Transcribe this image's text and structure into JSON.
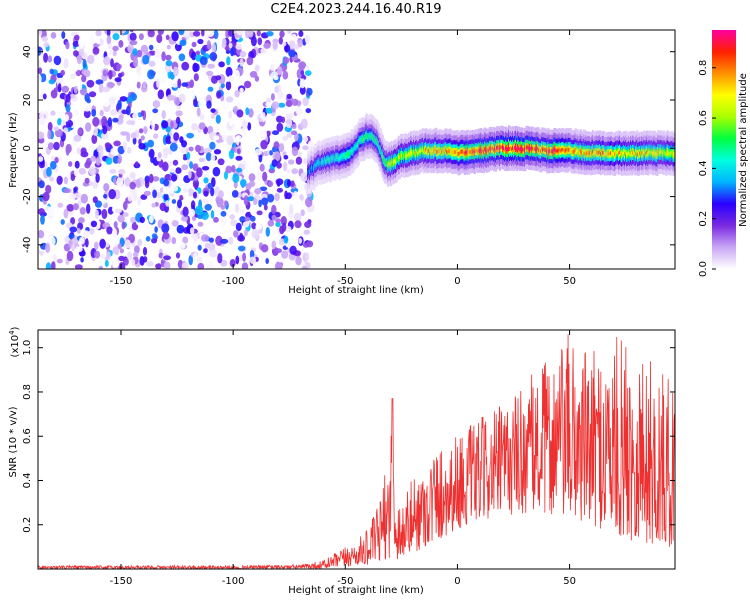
{
  "title": "C2E4.2023.244.16.40.R19",
  "chart_data": [
    {
      "type": "heatmap",
      "xlabel": "Height of straight line (km)",
      "ylabel": "Frequency (Hz)",
      "xlim": [
        -187,
        97
      ],
      "ylim": [
        -50,
        49
      ],
      "xticks": [
        -150,
        -100,
        -50,
        0,
        50
      ],
      "yticks": [
        -40,
        -20,
        0,
        20,
        40
      ],
      "colorbar": {
        "label": "Normalized spectral amplitude",
        "range": [
          0,
          0.95
        ],
        "ticks": [
          "0.0",
          "0.2",
          "0.4",
          "0.6",
          "0.8"
        ],
        "colors": [
          "#ffffff",
          "#c9a6f5",
          "#7a2ae0",
          "#2a00ff",
          "#00b4ff",
          "#00ffe0",
          "#00ff40",
          "#aaff00",
          "#ffff00",
          "#ff9000",
          "#ff2000",
          "#ff00a0"
        ]
      },
      "noise_region_x": [
        -187,
        -67
      ],
      "ridge": {
        "x": [
          -67,
          -62,
          -58,
          -54,
          -50,
          -47,
          -44,
          -41,
          -39,
          -37,
          -35,
          -33,
          -31,
          -28,
          -25,
          -20,
          -15,
          -10,
          -5,
          0,
          10,
          20,
          30,
          40,
          50,
          60,
          70,
          80,
          90,
          97
        ],
        "freq": [
          -10,
          -6,
          -5,
          -4,
          -3,
          -1,
          3,
          5,
          5,
          4,
          0,
          -5,
          -7,
          -5,
          -3,
          -2,
          -1,
          -1,
          -1,
          -2,
          -1,
          0,
          0,
          -1,
          -1,
          -2,
          -2,
          -2,
          -2,
          -2
        ],
        "amplitude": [
          0.35,
          0.4,
          0.45,
          0.45,
          0.5,
          0.5,
          0.5,
          0.55,
          0.55,
          0.5,
          0.5,
          0.55,
          0.6,
          0.65,
          0.65,
          0.7,
          0.75,
          0.75,
          0.8,
          0.85,
          0.9,
          0.95,
          0.95,
          0.9,
          0.85,
          0.8,
          0.75,
          0.75,
          0.7,
          0.7
        ]
      }
    },
    {
      "type": "line",
      "xlabel": "Height of straight line (km)",
      "ylabel": "SNR (10 * v/v)",
      "scale_label": "(x10",
      "scale_exp": "4",
      "scale_close": ")",
      "xlim": [
        -187,
        97
      ],
      "ylim": [
        0,
        1.08
      ],
      "xticks": [
        -150,
        -100,
        -50,
        0,
        50
      ],
      "yticks": [
        "0.2",
        "0.4",
        "0.6",
        "0.8",
        "1.0"
      ],
      "line_color": "#ee3030",
      "series": [
        {
          "x": [
            -187,
            -150,
            -100,
            -70,
            -60,
            -55,
            -50,
            -45,
            -40,
            -35,
            -31,
            -29,
            -27,
            -25,
            -20,
            -10,
            0,
            10,
            20,
            30,
            40,
            50,
            60,
            70,
            80,
            90,
            97
          ],
          "low": [
            0.0,
            0.0,
            0.0,
            0.0,
            0.0,
            0.005,
            0.01,
            0.015,
            0.02,
            0.03,
            0.05,
            0.05,
            0.04,
            0.05,
            0.07,
            0.12,
            0.18,
            0.22,
            0.24,
            0.25,
            0.25,
            0.22,
            0.2,
            0.15,
            0.12,
            0.1,
            0.1
          ],
          "high": [
            0.015,
            0.015,
            0.015,
            0.02,
            0.04,
            0.07,
            0.1,
            0.13,
            0.18,
            0.3,
            0.5,
            0.77,
            0.35,
            0.3,
            0.42,
            0.55,
            0.62,
            0.68,
            0.75,
            0.85,
            0.95,
            1.07,
            0.98,
            1.05,
            1.04,
            0.9,
            0.85
          ]
        }
      ]
    }
  ]
}
